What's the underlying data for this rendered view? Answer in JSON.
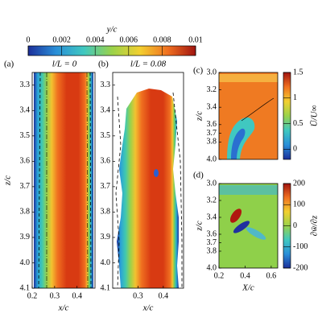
{
  "chart_data": [
    {
      "type": "heatmap",
      "label": "(a)",
      "title": "l/L = 0",
      "xlabel": "x/c",
      "ylabel": "z/c",
      "xlim": [
        0.2,
        0.48
      ],
      "ylim": [
        3.25,
        4.1
      ],
      "y_inverted": true,
      "xticks": [
        0.2,
        0.3,
        0.4
      ],
      "yticks": [
        3.3,
        3.4,
        3.5,
        3.6,
        3.7,
        3.8,
        3.9,
        {
          "value": 4,
          "label": "4.0"
        },
        4.1
      ]
    },
    {
      "type": "heatmap",
      "label": "(b)",
      "title": "l/L = 0.08",
      "xlabel": "x/c",
      "xlim": [
        0.2,
        0.48
      ],
      "ylim": [
        3.25,
        4.1
      ],
      "y_inverted": true,
      "xticks": [
        0.3,
        0.4
      ],
      "yticks": [
        3.3,
        3.4,
        3.5,
        3.6,
        3.7,
        3.8,
        3.9,
        {
          "value": 4,
          "label": "4.0"
        },
        4.1
      ]
    },
    {
      "type": "heatmap",
      "label": "(c)",
      "ylabel": "z/c",
      "ylim": [
        3,
        4
      ],
      "y_inverted": true,
      "yticks": [
        {
          "value": 3,
          "label": "3.0"
        },
        3.2,
        3.4,
        3.6,
        3.7,
        3.8,
        {
          "value": 4,
          "label": "4.0"
        }
      ]
    },
    {
      "type": "heatmap",
      "label": "(d)",
      "xlabel": "X/c",
      "ylabel": "z/c",
      "xlim": [
        0.2,
        0.65
      ],
      "ylim": [
        3,
        4
      ],
      "y_inverted": true,
      "xticks": [
        0.2,
        0.4,
        0.6
      ],
      "yticks": [
        {
          "value": 3,
          "label": "3.0"
        },
        3.2,
        3.4,
        3.6,
        3.7,
        3.8,
        {
          "value": 4,
          "label": "4.0"
        }
      ]
    },
    {
      "type": "colorbar",
      "orientation": "horizontal",
      "label": "y/c",
      "clim": [
        0,
        0.01
      ],
      "ticks": [
        0,
        0.002,
        0.004,
        0.006,
        0.008,
        0.01
      ],
      "colors": [
        "#1c2f9a",
        "#2a8fd8",
        "#40c8c0",
        "#9ad24a",
        "#f2d030",
        "#f07020",
        "#a01410"
      ]
    },
    {
      "type": "colorbar",
      "orientation": "vertical",
      "label": "Ū/U∞",
      "clim": [
        -0.2,
        1.5
      ],
      "ticks": [
        0,
        0.5,
        1,
        1.5
      ],
      "colors": [
        "#1c2f9a",
        "#2a8fd8",
        "#40c8c0",
        "#9ad24a",
        "#f2d030",
        "#f07020",
        "#a01410"
      ]
    },
    {
      "type": "colorbar",
      "orientation": "vertical",
      "label": "∂w̄/∂z",
      "clim": [
        -200,
        200
      ],
      "ticks": [
        -200,
        -100,
        0,
        100,
        200
      ],
      "colors": [
        "#1c2f9a",
        "#2a8fd8",
        "#40c8c0",
        "#9ad24a",
        "#f2d030",
        "#f07020",
        "#a01410"
      ]
    }
  ]
}
